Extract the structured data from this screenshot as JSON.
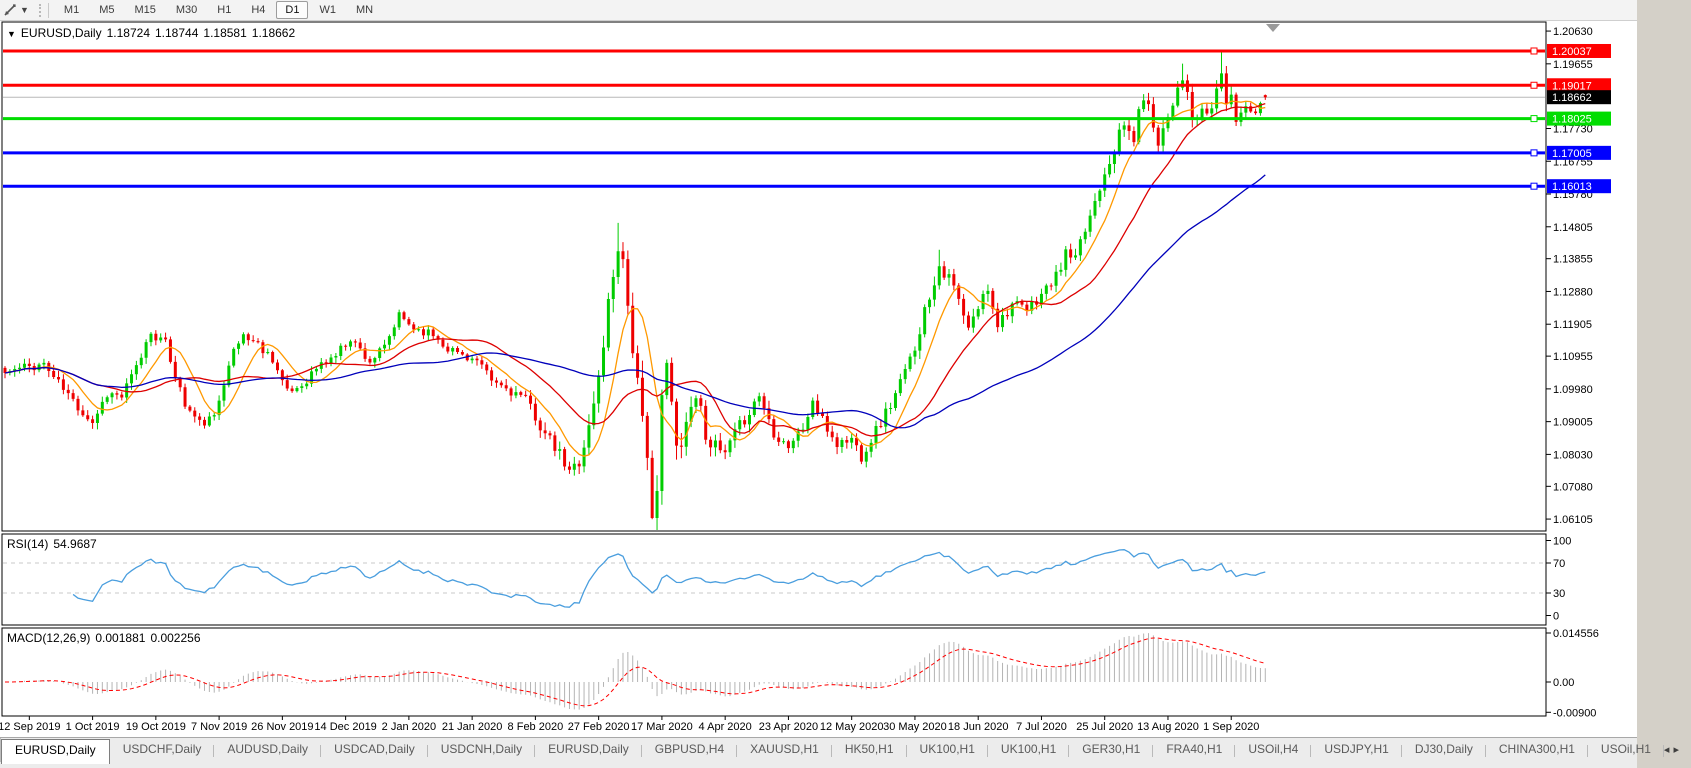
{
  "toolbar": {
    "timeframes": [
      "M1",
      "M5",
      "M15",
      "M30",
      "H1",
      "H4",
      "D1",
      "W1",
      "MN"
    ],
    "active_timeframe": "D1"
  },
  "panes": {
    "main": {
      "title_symbol": "EURUSD,Daily",
      "open": "1.18724",
      "high": "1.18744",
      "low": "1.18581",
      "close": "1.18662"
    },
    "rsi": {
      "name": "RSI(14)",
      "value": "54.9687"
    },
    "macd": {
      "name": "MACD(12,26,9)",
      "value": "0.001881",
      "signal_value": "0.002256"
    }
  },
  "tabs": {
    "items": [
      "EURUSD,Daily",
      "USDCHF,Daily",
      "AUDUSD,Daily",
      "USDCAD,Daily",
      "USDCNH,Daily",
      "EURUSD,Daily",
      "GBPUSD,H4",
      "XAUUSD,H1",
      "HK50,H1",
      "UK100,H1",
      "UK100,H1",
      "GER30,H1",
      "FRA40,H1",
      "USOil,H4",
      "USDJPY,H1",
      "DJ30,Daily",
      "CHINA300,H1",
      "USOil,H1"
    ],
    "active_index": 0,
    "scroll_left": "◂",
    "scroll_right": "▸"
  },
  "chart_data": {
    "type": "candlestick",
    "symbol": "EURUSD",
    "timeframe": "Daily",
    "last_candle": {
      "open": 1.18724,
      "high": 1.18744,
      "low": 1.18581,
      "close": 1.18662
    },
    "price_axis": {
      "top": 1.209,
      "bottom": 1.0575,
      "ticks": [
        "1.20630",
        "1.19655",
        "1.17730",
        "1.16755",
        "1.15780",
        "1.14805",
        "1.13855",
        "1.12880",
        "1.11905",
        "1.10955",
        "1.09980",
        "1.09005",
        "1.08030",
        "1.07080",
        "1.06105"
      ]
    },
    "x_axis": {
      "dates": [
        "12 Sep 2019",
        "1 Oct 2019",
        "19 Oct 2019",
        "7 Nov 2019",
        "26 Nov 2019",
        "14 Dec 2019",
        "2 Jan 2020",
        "21 Jan 2020",
        "8 Feb 2020",
        "27 Feb 2020",
        "17 Mar 2020",
        "4 Apr 2020",
        "23 Apr 2020",
        "12 May 2020",
        "30 May 2020",
        "18 Jun 2020",
        "7 Jul 2020",
        "25 Jul 2020",
        "13 Aug 2020",
        "1 Sep 2020"
      ],
      "bars_per_tick": 13,
      "first_tick_bar": 5
    },
    "levels": [
      {
        "price": 1.20037,
        "label": "1.20037",
        "color": "#ff0000",
        "style": "horizontal-line"
      },
      {
        "price": 1.19017,
        "label": "1.19017",
        "color": "#ff0000",
        "style": "horizontal-line"
      },
      {
        "price": 1.18662,
        "label": "1.18662",
        "color": "#000000",
        "style": "current-price"
      },
      {
        "price": 1.18025,
        "label": "1.18025",
        "color": "#00dd00",
        "style": "horizontal-line"
      },
      {
        "price": 1.17005,
        "label": "1.17005",
        "color": "#0000ff",
        "style": "horizontal-line"
      },
      {
        "price": 1.16013,
        "label": "1.16013",
        "color": "#0000ff",
        "style": "horizontal-line"
      }
    ],
    "candles": {
      "count": 260,
      "close_anchors": [
        [
          0,
          1.1045
        ],
        [
          3,
          1.1058
        ],
        [
          5,
          1.1065
        ],
        [
          8,
          1.1072
        ],
        [
          11,
          1.1015
        ],
        [
          15,
          1.0945
        ],
        [
          18,
          1.09
        ],
        [
          21,
          1.0985
        ],
        [
          24,
          1.0975
        ],
        [
          27,
          1.106
        ],
        [
          30,
          1.117
        ],
        [
          33,
          1.113
        ],
        [
          37,
          1.095
        ],
        [
          40,
          1.0895
        ],
        [
          43,
          1.091
        ],
        [
          46,
          1.108
        ],
        [
          49,
          1.116
        ],
        [
          52,
          1.113
        ],
        [
          55,
          1.109
        ],
        [
          58,
          1.0985
        ],
        [
          61,
          1.101
        ],
        [
          64,
          1.106
        ],
        [
          68,
          1.11
        ],
        [
          71,
          1.115
        ],
        [
          75,
          1.108
        ],
        [
          78,
          1.112
        ],
        [
          81,
          1.1215
        ],
        [
          84,
          1.118
        ],
        [
          88,
          1.116
        ],
        [
          91,
          1.112
        ],
        [
          94,
          1.11
        ],
        [
          97,
          1.108
        ],
        [
          100,
          1.102
        ],
        [
          103,
          1.1
        ],
        [
          106,
          1.0975
        ],
        [
          108,
          1.0946
        ],
        [
          111,
          1.086
        ],
        [
          114,
          1.08
        ],
        [
          116,
          1.0745
        ],
        [
          118,
          1.079
        ],
        [
          120,
          1.088
        ],
        [
          122,
          1.103
        ],
        [
          124,
          1.125
        ],
        [
          126,
          1.144
        ],
        [
          127,
          1.138
        ],
        [
          129,
          1.113
        ],
        [
          131,
          1.088
        ],
        [
          133,
          1.066
        ],
        [
          134,
          1.07
        ],
        [
          135,
          1.095
        ],
        [
          136,
          1.107
        ],
        [
          138,
          1.082
        ],
        [
          140,
          1.09
        ],
        [
          142,
          1.099
        ],
        [
          144,
          1.087
        ],
        [
          146,
          1.082
        ],
        [
          148,
          1.08
        ],
        [
          150,
          1.086
        ],
        [
          152,
          1.091
        ],
        [
          155,
          1.098
        ],
        [
          158,
          1.087
        ],
        [
          161,
          1.083
        ],
        [
          164,
          1.088
        ],
        [
          166,
          1.096
        ],
        [
          168,
          1.09
        ],
        [
          171,
          1.0834
        ],
        [
          174,
          1.085
        ],
        [
          176,
          1.08
        ],
        [
          178,
          1.085
        ],
        [
          180,
          1.09
        ],
        [
          183,
          1.098
        ],
        [
          186,
          1.108
        ],
        [
          189,
          1.123
        ],
        [
          192,
          1.137
        ],
        [
          195,
          1.13
        ],
        [
          198,
          1.117
        ],
        [
          200,
          1.124
        ],
        [
          202,
          1.13
        ],
        [
          204,
          1.1195
        ],
        [
          207,
          1.125
        ],
        [
          210,
          1.123
        ],
        [
          213,
          1.128
        ],
        [
          216,
          1.133
        ],
        [
          218,
          1.14
        ],
        [
          220,
          1.138
        ],
        [
          222,
          1.147
        ],
        [
          224,
          1.156
        ],
        [
          226,
          1.165
        ],
        [
          228,
          1.172
        ],
        [
          230,
          1.178
        ],
        [
          232,
          1.1745
        ],
        [
          234,
          1.1876
        ],
        [
          237,
          1.174
        ],
        [
          239,
          1.1812
        ],
        [
          241,
          1.19
        ],
        [
          242,
          1.1932
        ],
        [
          244,
          1.1797
        ],
        [
          246,
          1.1815
        ],
        [
          248,
          1.183
        ],
        [
          250,
          1.195
        ],
        [
          251,
          1.1845
        ],
        [
          252,
          1.1855
        ],
        [
          253,
          1.18
        ],
        [
          255,
          1.1842
        ],
        [
          257,
          1.1825
        ],
        [
          259,
          1.18662
        ]
      ],
      "volatility_anchors": [
        [
          0,
          0.9
        ],
        [
          30,
          0.9
        ],
        [
          60,
          0.8
        ],
        [
          95,
          0.7
        ],
        [
          108,
          1.0
        ],
        [
          116,
          1.3
        ],
        [
          121,
          1.7
        ],
        [
          126,
          2.2
        ],
        [
          130,
          2.3
        ],
        [
          133,
          2.6
        ],
        [
          136,
          2.2
        ],
        [
          140,
          1.8
        ],
        [
          145,
          1.4
        ],
        [
          152,
          1.1
        ],
        [
          162,
          1.0
        ],
        [
          172,
          1.0
        ],
        [
          182,
          1.1
        ],
        [
          188,
          1.3
        ],
        [
          193,
          1.2
        ],
        [
          200,
          1.1
        ],
        [
          210,
          0.9
        ],
        [
          220,
          1.0
        ],
        [
          226,
          1.2
        ],
        [
          233,
          1.3
        ],
        [
          238,
          1.1
        ],
        [
          243,
          1.2
        ],
        [
          247,
          0.9
        ],
        [
          250,
          1.5
        ],
        [
          253,
          1.0
        ],
        [
          259,
          0.5
        ]
      ],
      "overrides": [
        {
          "i": 18,
          "l": 1.0879
        },
        {
          "i": 116,
          "l": 1.0745
        },
        {
          "i": 126,
          "h": 1.1492
        },
        {
          "i": 133,
          "l": 1.061
        },
        {
          "i": 176,
          "l": 1.0774
        },
        {
          "i": 192,
          "h": 1.1412
        },
        {
          "i": 242,
          "h": 1.1966
        },
        {
          "i": 250,
          "h": 1.2004
        },
        {
          "i": 259,
          "o": 1.18724,
          "h": 1.18744,
          "l": 1.18581,
          "c": 1.18662
        }
      ]
    },
    "moving_averages": [
      {
        "period": 8,
        "color": "#ff9900"
      },
      {
        "period": 21,
        "color": "#dd0000"
      },
      {
        "period": 55,
        "color": "#0000bb"
      }
    ],
    "rsi": {
      "period": 14,
      "current": 54.9687,
      "color": "#4a9ede",
      "overbought": 70,
      "oversold": 30,
      "ticks": [
        100,
        70,
        30,
        0
      ]
    },
    "macd": {
      "fast": 12,
      "slow": 26,
      "signal": 9,
      "current": 0.001881,
      "signal_current": 0.002256,
      "axis_ticks": [
        "0.014556",
        "0.00",
        "-0.00900"
      ],
      "histogram_color": "#b4b4b4",
      "signal_color": "#ff0000"
    },
    "colors": {
      "bull": "#00cc00",
      "bear": "#ee0000",
      "background": "#ffffff",
      "current_price_line": "#b8b8b8"
    }
  }
}
